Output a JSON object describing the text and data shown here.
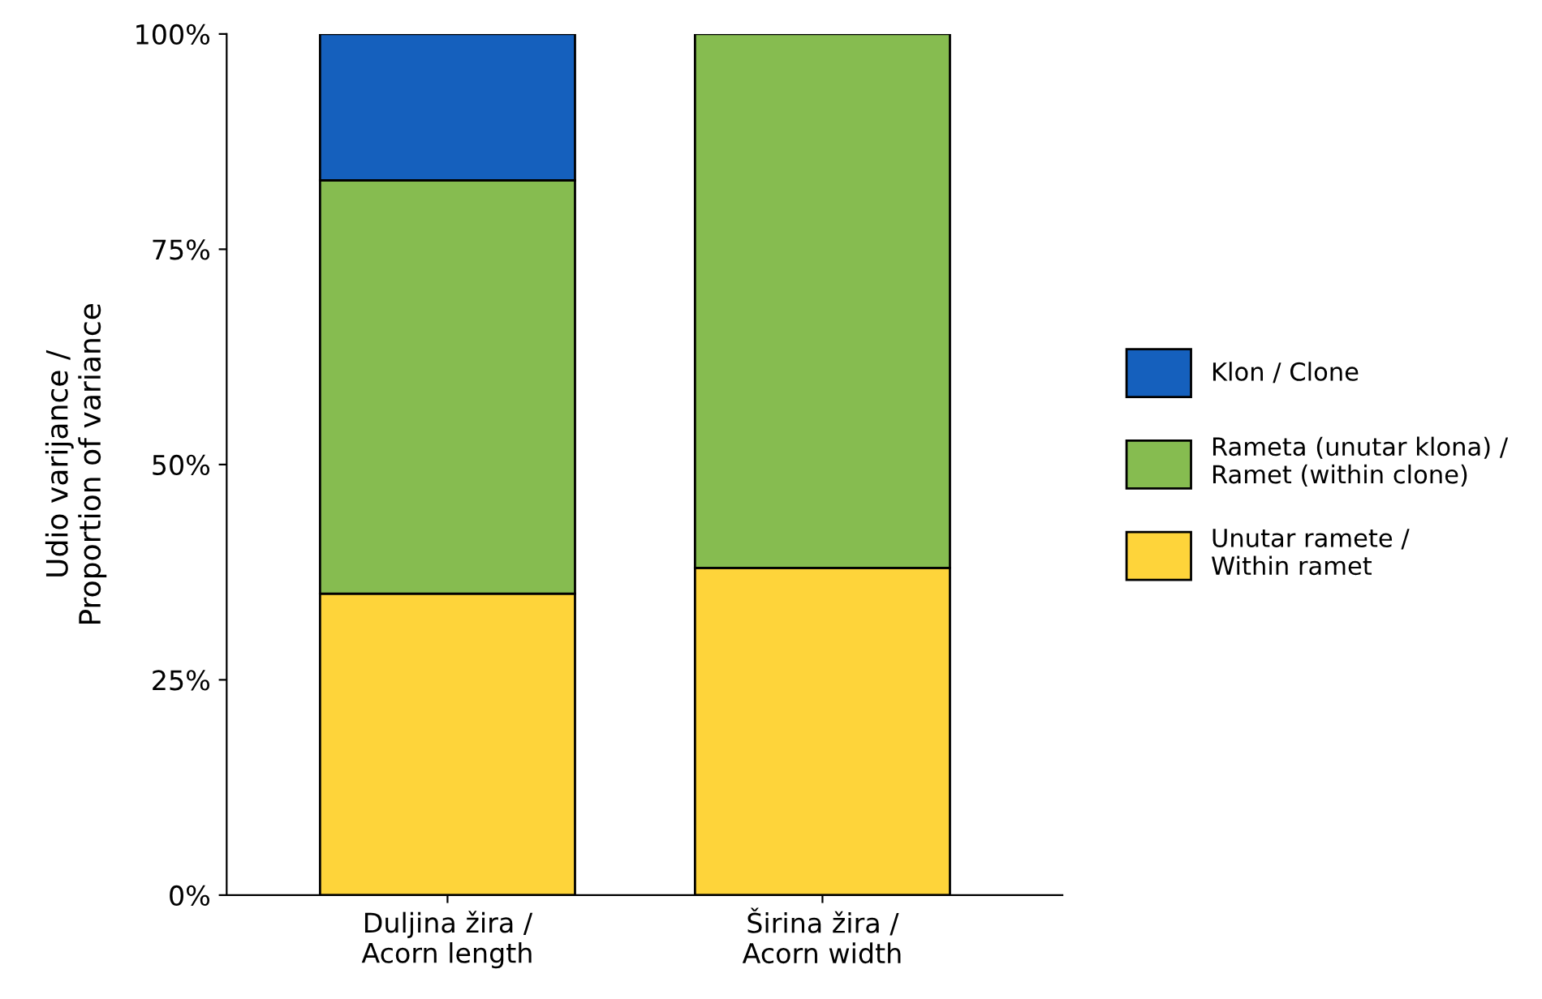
{
  "chart_data": {
    "type": "bar",
    "stacked": true,
    "ylabel": "Udio varijance /\nProportion of variance",
    "categories": [
      "Duljina žira /\nAcorn length",
      "Širina žira /\nAcorn width"
    ],
    "series": [
      {
        "name": "Unutar ramete /\nWithin ramet",
        "color": "#fed43a",
        "values": [
          35,
          38
        ]
      },
      {
        "name": "Rameta (unutar klona) /\nRamet (within clone)",
        "color": "#86bc50",
        "values": [
          48,
          62
        ]
      },
      {
        "name": "Klon / Clone",
        "color": "#1560bd",
        "values": [
          17,
          0
        ]
      }
    ],
    "ylim": [
      0,
      100
    ],
    "yticks": [
      {
        "value": 0,
        "label": "0%"
      },
      {
        "value": 25,
        "label": "25%"
      },
      {
        "value": 50,
        "label": "50%"
      },
      {
        "value": 75,
        "label": "75%"
      },
      {
        "value": 100,
        "label": "100%"
      }
    ],
    "legend": "right"
  }
}
